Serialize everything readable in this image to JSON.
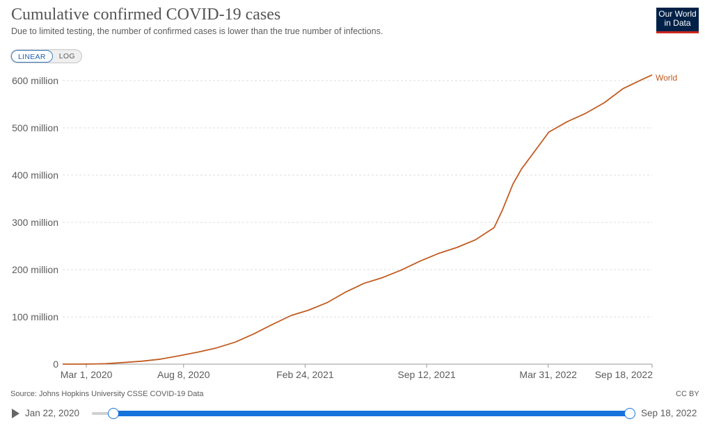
{
  "header": {
    "title": "Cumulative confirmed COVID-19 cases",
    "subtitle": "Due to limited testing, the number of confirmed cases is lower than the true number of infections."
  },
  "logo": {
    "line1": "Our World",
    "line2": "in Data",
    "bg_color": "#002147",
    "accent_color": "#ce261e"
  },
  "scale_toggle": {
    "linear_label": "LINEAR",
    "log_label": "LOG",
    "active": "LINEAR"
  },
  "chart_data": {
    "type": "line",
    "title": "Cumulative confirmed COVID-19 cases",
    "subtitle": "Due to limited testing, the number of confirmed cases is lower than the true number of infections.",
    "xlabel": "",
    "ylabel": "",
    "x_range": [
      "2020-01-22",
      "2022-09-18"
    ],
    "ylim": [
      0,
      600000000
    ],
    "y_ticks": [
      {
        "value": 0,
        "label": "0"
      },
      {
        "value": 100000000,
        "label": "100 million"
      },
      {
        "value": 200000000,
        "label": "200 million"
      },
      {
        "value": 300000000,
        "label": "300 million"
      },
      {
        "value": 400000000,
        "label": "400 million"
      },
      {
        "value": 500000000,
        "label": "500 million"
      },
      {
        "value": 600000000,
        "label": "600 million"
      }
    ],
    "x_ticks": [
      {
        "date": "2020-03-01",
        "label": "Mar 1, 2020"
      },
      {
        "date": "2020-08-08",
        "label": "Aug 8, 2020"
      },
      {
        "date": "2021-02-24",
        "label": "Feb 24, 2021"
      },
      {
        "date": "2021-09-12",
        "label": "Sep 12, 2021"
      },
      {
        "date": "2022-03-31",
        "label": "Mar 31, 2022"
      },
      {
        "date": "2022-09-18",
        "label": "Sep 18, 2022"
      }
    ],
    "grid": {
      "horizontal": true,
      "style": "dotted"
    },
    "series": [
      {
        "name": "World",
        "color": "#c15b20",
        "points": [
          [
            "2020-01-22",
            600
          ],
          [
            "2020-03-01",
            90000
          ],
          [
            "2020-04-01",
            950000
          ],
          [
            "2020-05-01",
            3400000
          ],
          [
            "2020-06-01",
            6300000
          ],
          [
            "2020-07-01",
            10600000
          ],
          [
            "2020-08-01",
            17800000
          ],
          [
            "2020-09-01",
            25600000
          ],
          [
            "2020-10-01",
            34200000
          ],
          [
            "2020-11-01",
            46600000
          ],
          [
            "2020-12-01",
            63700000
          ],
          [
            "2021-01-01",
            84000000
          ],
          [
            "2021-02-01",
            103000000
          ],
          [
            "2021-03-01",
            114000000
          ],
          [
            "2021-04-01",
            130000000
          ],
          [
            "2021-05-01",
            152000000
          ],
          [
            "2021-06-01",
            171000000
          ],
          [
            "2021-07-01",
            183000000
          ],
          [
            "2021-08-01",
            199000000
          ],
          [
            "2021-09-01",
            218000000
          ],
          [
            "2021-10-01",
            234000000
          ],
          [
            "2021-11-01",
            247000000
          ],
          [
            "2021-12-01",
            263000000
          ],
          [
            "2022-01-01",
            289000000
          ],
          [
            "2022-01-15",
            327000000
          ],
          [
            "2022-02-01",
            381000000
          ],
          [
            "2022-02-15",
            413000000
          ],
          [
            "2022-03-01",
            437000000
          ],
          [
            "2022-04-01",
            491000000
          ],
          [
            "2022-05-01",
            513000000
          ],
          [
            "2022-06-01",
            531000000
          ],
          [
            "2022-07-01",
            553000000
          ],
          [
            "2022-08-01",
            583000000
          ],
          [
            "2022-09-01",
            602000000
          ],
          [
            "2022-09-18",
            612000000
          ]
        ]
      }
    ]
  },
  "footer": {
    "source": "Source: Johns Hopkins University CSSE COVID-19 Data",
    "license": "CC BY"
  },
  "timeline": {
    "start_label": "Jan 22, 2020",
    "end_label": "Sep 18, 2022",
    "accent_color": "#1673dc"
  }
}
